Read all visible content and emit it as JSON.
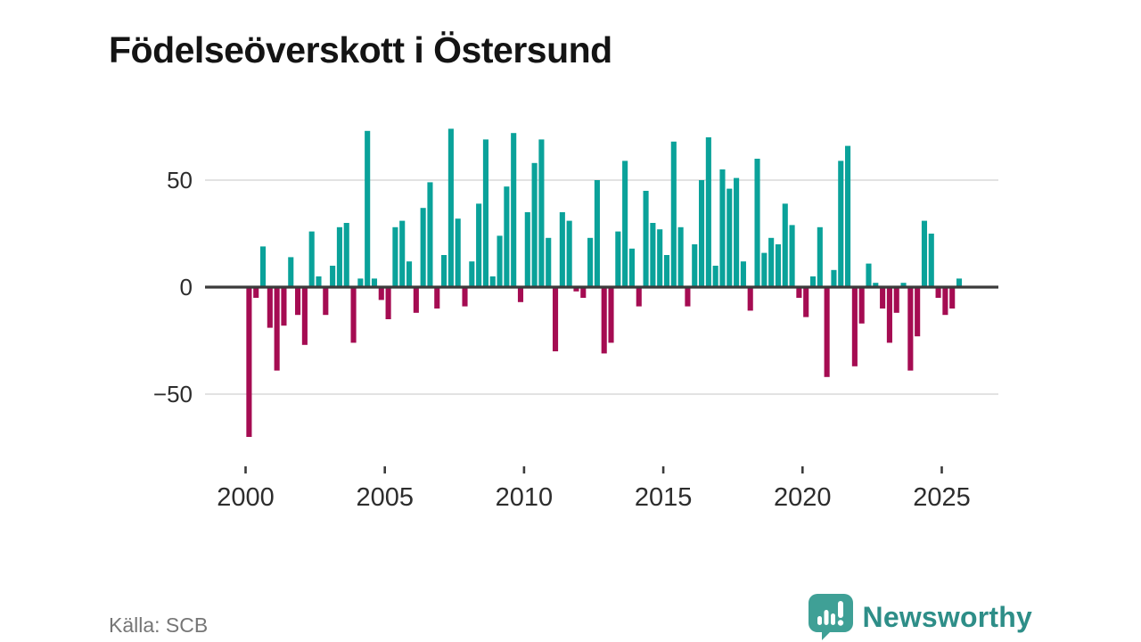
{
  "title": "Födelseöverskott i Östersund",
  "footer": {
    "source": "Källa: SCB",
    "brand": "Newsworthy"
  },
  "colors": {
    "positive_bar": "#0aa29a",
    "negative_bar": "#a50c52",
    "zero_line": "#3b3b3b",
    "gridline": "#e2e2e2",
    "axis_text": "#2d2d2d",
    "source_text": "#767676",
    "brand_teal": "#2e8e88",
    "logo_teal": "#3fa096"
  },
  "chart_data": {
    "type": "bar",
    "title": "Födelseöverskott i Östersund",
    "xlabel": "",
    "ylabel": "",
    "frequency": "quarterly",
    "start_period": "2000Q1",
    "end_period": "2025Q3",
    "ylim": [
      -75,
      80
    ],
    "grid": "horizontal",
    "legend": "none",
    "y_ticks": [
      {
        "value": 50,
        "label": "50"
      },
      {
        "value": 0,
        "label": "0"
      },
      {
        "value": -50,
        "label": "−50"
      }
    ],
    "x_ticks": [
      {
        "year": 2000,
        "label": "2000"
      },
      {
        "year": 2005,
        "label": "2005"
      },
      {
        "year": 2010,
        "label": "2010"
      },
      {
        "year": 2015,
        "label": "2015"
      },
      {
        "year": 2020,
        "label": "2020"
      },
      {
        "year": 2025,
        "label": "2025"
      }
    ],
    "values": [
      -70,
      -5,
      19,
      -19,
      -39,
      -18,
      14,
      -13,
      -27,
      26,
      5,
      -13,
      10,
      28,
      30,
      -26,
      4,
      73,
      4,
      -6,
      -15,
      28,
      31,
      12,
      -12,
      37,
      49,
      -10,
      15,
      74,
      32,
      -9,
      12,
      39,
      69,
      5,
      24,
      47,
      72,
      -7,
      35,
      58,
      69,
      23,
      -30,
      35,
      31,
      -2,
      -5,
      23,
      50,
      -31,
      -26,
      26,
      59,
      18,
      -9,
      45,
      30,
      27,
      15,
      68,
      28,
      -9,
      20,
      50,
      70,
      10,
      55,
      46,
      51,
      12,
      -11,
      60,
      16,
      23,
      20,
      39,
      29,
      -5,
      -14,
      5,
      28,
      -42,
      8,
      59,
      66,
      -37,
      -17,
      11,
      2,
      -10,
      -26,
      -12,
      2,
      -39,
      -23,
      31,
      25,
      -5,
      -13,
      -10,
      4
    ]
  }
}
